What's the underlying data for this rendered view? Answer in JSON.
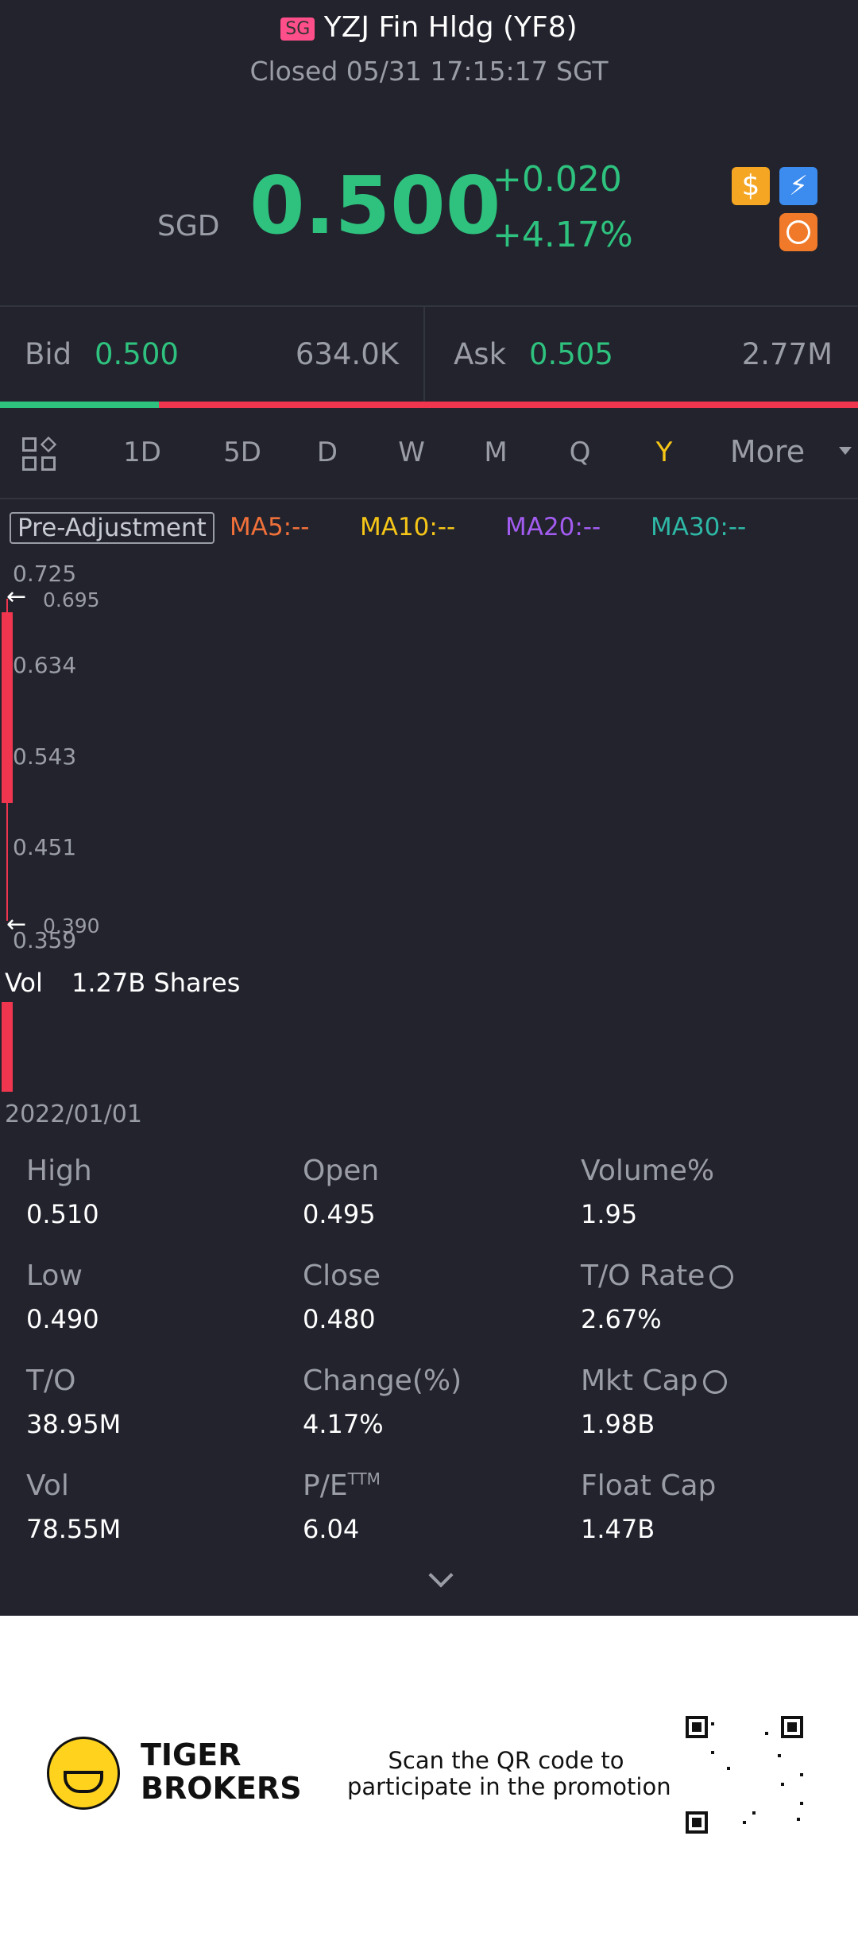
{
  "header": {
    "badge": "SG",
    "title": "YZJ Fin Hldg (YF8)",
    "status": "Closed 05/31 17:15:17 SGT"
  },
  "quote": {
    "currency": "SGD",
    "price": "0.500",
    "change": "+0.020",
    "change_pct": "+4.17%"
  },
  "order_book": {
    "bid_label": "Bid",
    "bid": "0.500",
    "bid_size": "634.0K",
    "ask_label": "Ask",
    "ask": "0.505",
    "ask_size": "2.77M"
  },
  "periods": [
    "1D",
    "5D",
    "D",
    "W",
    "M",
    "Q",
    "Y",
    "More"
  ],
  "indicators": {
    "adjustment": "Pre-Adjustment",
    "ma": [
      "MA5:--",
      "MA10:--",
      "MA20:--",
      "MA30:--"
    ]
  },
  "chart": {
    "price_labels": [
      "0.725",
      "0.634",
      "0.543",
      "0.451",
      "0.359"
    ],
    "high_marker": "0.695",
    "low_marker": "0.390",
    "volume_label": "Vol",
    "volume": "1.27B Shares",
    "date": "2022/01/01"
  },
  "stats": [
    [
      {
        "label": "High",
        "value": "0.510"
      },
      {
        "label": "Open",
        "value": "0.495"
      },
      {
        "label": "Volume%",
        "value": "1.95"
      }
    ],
    [
      {
        "label": "Low",
        "value": "0.490"
      },
      {
        "label": "Close",
        "value": "0.480"
      },
      {
        "label": "T/O Rate",
        "value": "2.67%"
      }
    ],
    [
      {
        "label": "T/O",
        "value": "38.95M"
      },
      {
        "label": "Change(%)",
        "value": "4.17%"
      },
      {
        "label": "Mkt Cap",
        "value": "1.98B"
      }
    ],
    [
      {
        "label": "Vol",
        "value": "78.55M"
      },
      {
        "label": "P/E",
        "sup": "TTM",
        "value": "6.04"
      },
      {
        "label": "Float Cap",
        "value": "1.47B"
      }
    ]
  ],
  "promo": {
    "brand_line1": "TIGER",
    "brand_line2": "BROKERS",
    "text_line1": "Scan the QR code to",
    "text_line2": "participate in the promotion"
  }
}
